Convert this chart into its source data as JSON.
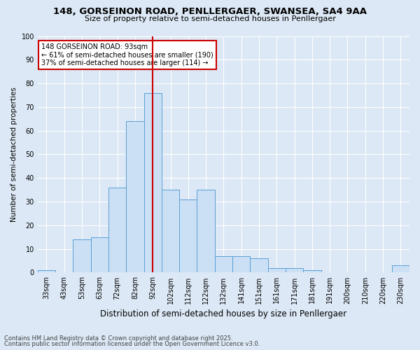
{
  "title1": "148, GORSEINON ROAD, PENLLERGAER, SWANSEA, SA4 9AA",
  "title2": "Size of property relative to semi-detached houses in Penllergaer",
  "xlabel": "Distribution of semi-detached houses by size in Penllergaer",
  "ylabel": "Number of semi-detached properties",
  "categories": [
    "33sqm",
    "43sqm",
    "53sqm",
    "63sqm",
    "72sqm",
    "82sqm",
    "92sqm",
    "102sqm",
    "112sqm",
    "122sqm",
    "132sqm",
    "141sqm",
    "151sqm",
    "161sqm",
    "171sqm",
    "181sqm",
    "191sqm",
    "200sqm",
    "210sqm",
    "220sqm",
    "230sqm"
  ],
  "values": [
    1,
    0,
    14,
    15,
    36,
    64,
    76,
    35,
    31,
    35,
    7,
    7,
    6,
    2,
    2,
    1,
    0,
    0,
    0,
    0,
    3
  ],
  "bar_color": "#cce0f5",
  "bar_edge_color": "#5a9fd4",
  "vline_x": 6,
  "vline_color": "#cc0000",
  "property_label": "148 GORSEINON ROAD: 93sqm",
  "annotation1": "← 61% of semi-detached houses are smaller (190)",
  "annotation2": "37% of semi-detached houses are larger (114) →",
  "box_edge_color": "#cc0000",
  "background_color": "#dce8f5",
  "footer1": "Contains HM Land Registry data © Crown copyright and database right 2025.",
  "footer2": "Contains public sector information licensed under the Open Government Licence v3.0.",
  "ylim": [
    0,
    100
  ],
  "yticks": [
    0,
    10,
    20,
    30,
    40,
    50,
    60,
    70,
    80,
    90,
    100
  ],
  "title1_fontsize": 9.5,
  "title2_fontsize": 8.0,
  "xlabel_fontsize": 8.5,
  "ylabel_fontsize": 7.5,
  "tick_fontsize": 7.0,
  "annot_fontsize": 7.0,
  "footer_fontsize": 6.0
}
